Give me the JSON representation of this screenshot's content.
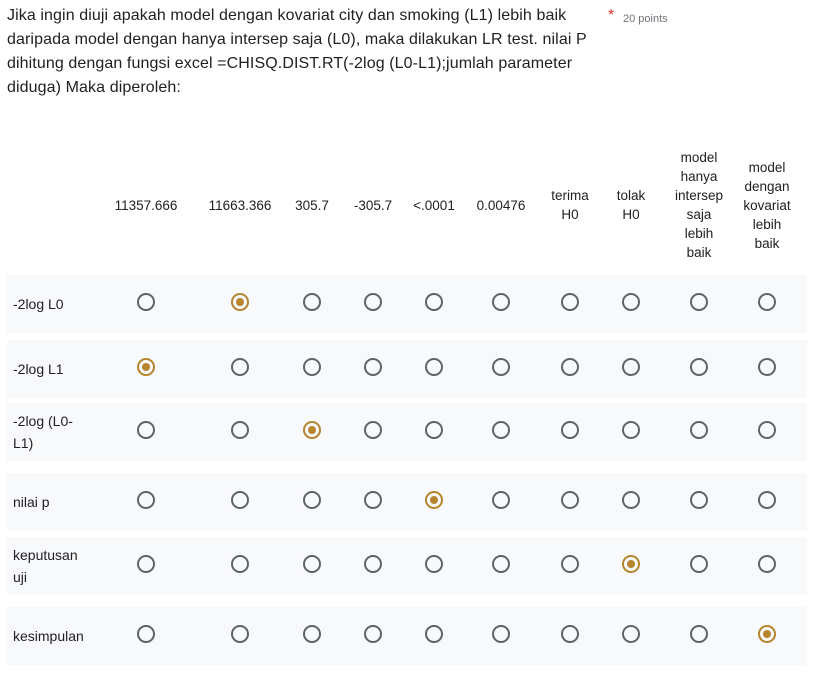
{
  "question": {
    "text": "Jika ingin diuji apakah model dengan kovariat city dan smoking (L1) lebih baik daripada model dengan hanya intersep saja (L0), maka dilakukan LR test. nilai P dihitung dengan fungsi excel =CHISQ.DIST.RT(-2log (L0-L1);jumlah parameter diduga) Maka diperoleh:",
    "required_mark": "*",
    "points": "20 points"
  },
  "grid": {
    "columns": [
      "11357.666",
      "11663.366",
      "305.7",
      "-305.7",
      "<.0001",
      "0.00476",
      "terima\nH0",
      "tolak\nH0",
      "model\nhanya\nintersep\nsaja\nlebih\nbaik",
      "model\ndengan\nkovariat\nlebih\nbaik"
    ],
    "rows": [
      {
        "label": "-2log L0",
        "selected": 1
      },
      {
        "label": "-2log L1",
        "selected": 0
      },
      {
        "label": "-2log (L0-\nL1)",
        "selected": 2
      },
      {
        "label": "nilai p",
        "selected": 4
      },
      {
        "label": "keputusan\nuji",
        "selected": 7
      },
      {
        "label": "kesimpulan",
        "selected": 9
      }
    ]
  },
  "colors": {
    "accent": "#b5852d",
    "required": "#d93025",
    "row_background": "#f8f9fa"
  }
}
